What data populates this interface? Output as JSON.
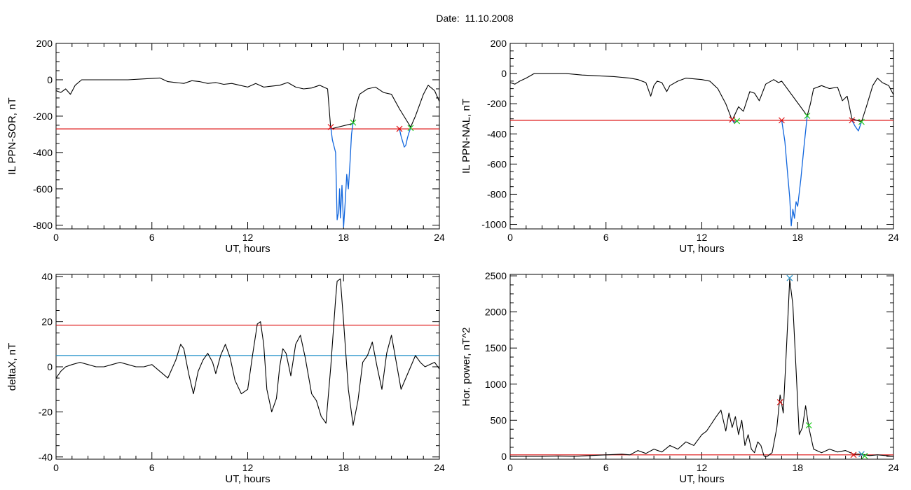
{
  "header": {
    "date_label": "Date:",
    "date_value": "11.10.2008"
  },
  "colors": {
    "trace": "#000000",
    "threshold_red": "#dd1111",
    "threshold_blue": "#1f8fc8",
    "event_blue": "#1166dd",
    "marker_red": "#dd1111",
    "marker_green": "#22cc22"
  },
  "chart_data": [
    {
      "id": "ppn-sor",
      "type": "line",
      "xlabel": "UT, hours",
      "ylabel": "IL PPN-SOR, nT",
      "xlim": [
        0,
        24
      ],
      "ylim": [
        -820,
        200
      ],
      "xticks": [
        0,
        6,
        12,
        18,
        24
      ],
      "yticks": [
        -800,
        -600,
        -400,
        -200,
        0,
        200
      ],
      "thresholds": [
        {
          "y": -270,
          "color": "red"
        }
      ],
      "series": [
        {
          "color": "black",
          "x": [
            0,
            0.3,
            0.6,
            0.9,
            1.2,
            1.6,
            2.5,
            3.5,
            4.5,
            5.5,
            6.5,
            7.0,
            7.5,
            8.0,
            8.5,
            9.0,
            9.5,
            10.0,
            10.5,
            11.0,
            11.5,
            12.0,
            12.5,
            13.0,
            13.5,
            14.0,
            14.5,
            15.0,
            15.5,
            16.0,
            16.5,
            17.0,
            17.2,
            18.6,
            18.8,
            19.0,
            19.5,
            20.0,
            20.5,
            21.0,
            21.5,
            22.2,
            22.5,
            23.0,
            23.3,
            23.7,
            24.0
          ],
          "y": [
            -60,
            -70,
            -50,
            -80,
            -30,
            0,
            0,
            0,
            0,
            5,
            10,
            -10,
            -15,
            -20,
            -5,
            -10,
            -20,
            -15,
            -25,
            -20,
            -30,
            -40,
            -20,
            -40,
            -35,
            -30,
            -15,
            -40,
            -50,
            -45,
            -30,
            -50,
            -270,
            -240,
            -140,
            -80,
            -50,
            -40,
            -70,
            -80,
            -160,
            -260,
            -200,
            -80,
            -30,
            -60,
            -120
          ]
        }
      ],
      "events": [
        {
          "start": {
            "x": 17.2,
            "y": -260
          },
          "end": {
            "x": 18.6,
            "y": -235
          },
          "x": [
            17.2,
            17.3,
            17.5,
            17.6,
            17.7,
            17.75,
            17.8,
            17.9,
            18.0,
            18.1,
            18.2,
            18.3,
            18.4,
            18.5,
            18.6
          ],
          "y": [
            -260,
            -330,
            -400,
            -770,
            -720,
            -600,
            -760,
            -580,
            -810,
            -680,
            -520,
            -600,
            -460,
            -300,
            -235
          ]
        },
        {
          "start": {
            "x": 21.5,
            "y": -270
          },
          "end": {
            "x": 22.2,
            "y": -265
          },
          "x": [
            21.5,
            21.6,
            21.7,
            21.8,
            21.9,
            22.0,
            22.1,
            22.2
          ],
          "y": [
            -270,
            -310,
            -340,
            -370,
            -360,
            -320,
            -290,
            -265
          ]
        }
      ]
    },
    {
      "id": "ppn-nal",
      "type": "line",
      "xlabel": "UT, hours",
      "ylabel": "IL PPN-NAL, nT",
      "xlim": [
        0,
        24
      ],
      "ylim": [
        -1030,
        200
      ],
      "xticks": [
        0,
        6,
        12,
        18,
        24
      ],
      "yticks": [
        -1000,
        -800,
        -600,
        -400,
        -200,
        0,
        200
      ],
      "thresholds": [
        {
          "y": -310,
          "color": "red"
        }
      ],
      "series": [
        {
          "color": "black",
          "x": [
            0,
            0.3,
            0.6,
            1.0,
            1.5,
            2.5,
            3.5,
            4.5,
            5.5,
            6.5,
            7.5,
            8.0,
            8.5,
            8.8,
            9.0,
            9.2,
            9.5,
            9.8,
            10.0,
            10.5,
            11.0,
            12.0,
            12.5,
            13.0,
            13.5,
            13.9,
            14.3,
            14.6,
            15.0,
            15.3,
            15.6,
            16.0,
            16.5,
            16.8,
            17.0,
            18.6,
            18.8,
            19.0,
            19.5,
            20.0,
            20.5,
            20.8,
            21.1,
            21.4,
            22.0,
            22.3,
            22.7,
            23.0,
            23.3,
            23.7,
            24.0
          ],
          "y": [
            -60,
            -70,
            -50,
            -30,
            0,
            0,
            0,
            -10,
            -15,
            -20,
            -30,
            -40,
            -60,
            -150,
            -80,
            -50,
            -60,
            -120,
            -80,
            -50,
            -30,
            -40,
            -50,
            -100,
            -200,
            -310,
            -220,
            -250,
            -120,
            -130,
            -180,
            -70,
            -40,
            -60,
            -50,
            -280,
            -200,
            -100,
            -80,
            -100,
            -90,
            -180,
            -150,
            -300,
            -320,
            -220,
            -80,
            -30,
            -60,
            -80,
            -140
          ]
        }
      ],
      "events": [
        {
          "start": {
            "x": 13.9,
            "y": -305
          },
          "end": {
            "x": 14.2,
            "y": -315
          },
          "x": [
            13.9,
            14.0,
            14.1,
            14.2
          ],
          "y": [
            -305,
            -325,
            -320,
            -315
          ]
        },
        {
          "start": {
            "x": 17.0,
            "y": -310
          },
          "end": {
            "x": 18.6,
            "y": -280
          },
          "x": [
            17.0,
            17.2,
            17.4,
            17.5,
            17.6,
            17.7,
            17.8,
            17.9,
            18.0,
            18.2,
            18.4,
            18.6
          ],
          "y": [
            -310,
            -450,
            -700,
            -820,
            -1010,
            -900,
            -960,
            -850,
            -880,
            -700,
            -480,
            -280
          ]
        },
        {
          "start": {
            "x": 21.4,
            "y": -310
          },
          "end": {
            "x": 22.0,
            "y": -320
          },
          "x": [
            21.4,
            21.6,
            21.8,
            22.0
          ],
          "y": [
            -310,
            -350,
            -380,
            -320
          ]
        }
      ]
    },
    {
      "id": "deltax",
      "type": "line",
      "xlabel": "UT, hours",
      "ylabel": "deltaX, nT",
      "xlim": [
        0,
        24
      ],
      "ylim": [
        -41,
        41
      ],
      "xticks": [
        0,
        6,
        12,
        18,
        24
      ],
      "yticks": [
        -40,
        -20,
        0,
        20,
        40
      ],
      "thresholds": [
        {
          "y": 18.5,
          "color": "red"
        },
        {
          "y": 5,
          "color": "blue"
        }
      ],
      "series": [
        {
          "color": "black",
          "x": [
            0,
            0.3,
            0.6,
            1.0,
            1.5,
            2.0,
            2.5,
            3.0,
            3.5,
            4.0,
            4.5,
            5.0,
            5.5,
            6.0,
            6.5,
            7.0,
            7.5,
            7.8,
            8.0,
            8.3,
            8.6,
            8.9,
            9.2,
            9.5,
            9.8,
            10.0,
            10.3,
            10.6,
            10.9,
            11.2,
            11.6,
            12.0,
            12.3,
            12.6,
            12.8,
            13.0,
            13.2,
            13.5,
            13.8,
            14.0,
            14.2,
            14.4,
            14.7,
            15.0,
            15.3,
            15.6,
            16.0,
            16.3,
            16.6,
            16.9,
            17.2,
            17.5,
            17.6,
            17.8,
            18.0,
            18.3,
            18.6,
            18.9,
            19.2,
            19.5,
            19.8,
            20.1,
            20.4,
            20.7,
            21.0,
            21.3,
            21.6,
            21.9,
            22.2,
            22.5,
            22.8,
            23.1,
            23.4,
            23.7,
            24.0
          ],
          "y": [
            -5,
            -2,
            0,
            1,
            2,
            1,
            0,
            0,
            1,
            2,
            1,
            0,
            0,
            1,
            -2,
            -5,
            3,
            10,
            8,
            -3,
            -12,
            -2,
            3,
            6,
            2,
            -3,
            5,
            10,
            4,
            -6,
            -12,
            -10,
            5,
            19,
            20,
            10,
            -10,
            -20,
            -14,
            0,
            8,
            6,
            -4,
            10,
            14,
            4,
            -12,
            -15,
            -22,
            -25,
            0,
            30,
            38,
            39,
            20,
            -10,
            -26,
            -15,
            2,
            5,
            11,
            0,
            -10,
            6,
            14,
            2,
            -10,
            -5,
            0,
            5,
            2,
            0,
            1,
            2,
            -1
          ]
        }
      ],
      "events": []
    },
    {
      "id": "hor-power",
      "type": "line",
      "xlabel": "UT, hours",
      "ylabel": "Hor. power, nT^2",
      "xlim": [
        0,
        24
      ],
      "ylim": [
        -40,
        2520
      ],
      "xticks": [
        0,
        6,
        12,
        18,
        24
      ],
      "yticks": [
        0,
        500,
        1000,
        1500,
        2000,
        2500
      ],
      "thresholds": [
        {
          "y": 20,
          "color": "red"
        }
      ],
      "series": [
        {
          "color": "black",
          "x": [
            0,
            1,
            2,
            3,
            4,
            5,
            6,
            7,
            7.5,
            8,
            8.5,
            9,
            9.5,
            10,
            10.5,
            11,
            11.5,
            12,
            12.3,
            12.6,
            12.9,
            13.2,
            13.5,
            13.7,
            13.9,
            14.1,
            14.3,
            14.5,
            14.7,
            14.9,
            15.1,
            15.3,
            15.5,
            15.7,
            15.9,
            16.1,
            16.4,
            16.7,
            16.9,
            17.1,
            17.3,
            17.5,
            17.7,
            17.9,
            18.1,
            18.3,
            18.5,
            18.7,
            19,
            19.5,
            20,
            20.5,
            21,
            21.5,
            22,
            22.5,
            23,
            23.5,
            24
          ],
          "y": [
            0,
            0,
            0,
            5,
            0,
            10,
            20,
            30,
            20,
            80,
            40,
            100,
            60,
            150,
            100,
            200,
            150,
            300,
            350,
            450,
            550,
            640,
            350,
            600,
            400,
            550,
            300,
            500,
            150,
            300,
            100,
            50,
            200,
            150,
            0,
            0,
            50,
            400,
            850,
            600,
            1500,
            2450,
            2100,
            1200,
            300,
            400,
            700,
            400,
            100,
            50,
            100,
            60,
            80,
            30,
            30,
            10,
            20,
            10,
            0
          ]
        }
      ],
      "markers": [
        {
          "x": 17.5,
          "y": 2470,
          "color": "blue"
        },
        {
          "x": 16.9,
          "y": 750,
          "color": "red"
        },
        {
          "x": 18.7,
          "y": 430,
          "color": "green"
        },
        {
          "x": 21.5,
          "y": 20,
          "color": "red"
        },
        {
          "x": 22.0,
          "y": 30,
          "color": "blue"
        },
        {
          "x": 22.2,
          "y": 5,
          "color": "green"
        }
      ],
      "events": []
    }
  ]
}
